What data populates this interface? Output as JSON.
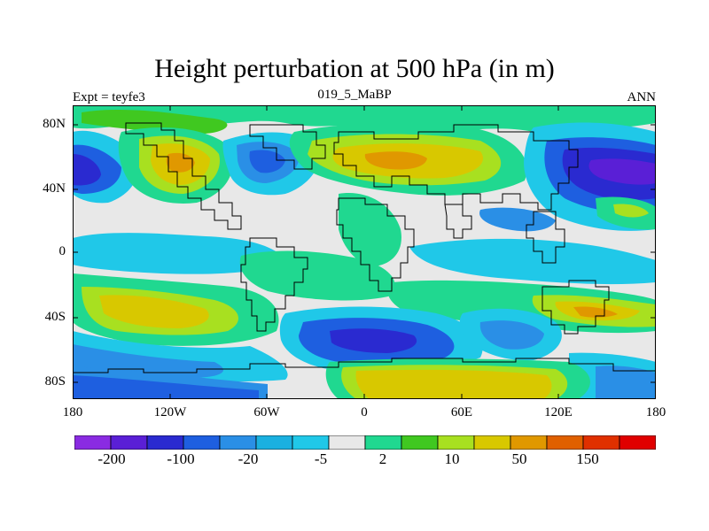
{
  "figure": {
    "title": "Height perturbation at 500 hPa (in m)",
    "left_string": "Expt = teyfe3",
    "center_string": "019_5_MaBP",
    "right_string": "ANN"
  },
  "axes": {
    "y_ticks": [
      "80N",
      "40N",
      "0",
      "40S",
      "80S"
    ],
    "x_ticks": [
      "180",
      "120W",
      "60W",
      "0",
      "60E",
      "120E",
      "180"
    ]
  },
  "colorbar": {
    "colors": [
      "#8a2be2",
      "#5a1fd6",
      "#2a2ad0",
      "#1e5fe0",
      "#2a8fe6",
      "#1ab0e0",
      "#20c8e8",
      "#e8e8e8",
      "#20d890",
      "#40c820",
      "#a8e020",
      "#d8c800",
      "#e09800",
      "#e06000",
      "#e03000",
      "#e00000"
    ],
    "labels": [
      "-200",
      "-100",
      "-20",
      "-5",
      "2",
      "10",
      "50",
      "150"
    ]
  },
  "colors": {
    "ocean_neutral": "#e8e8e8",
    "coastline": "#000000"
  }
}
